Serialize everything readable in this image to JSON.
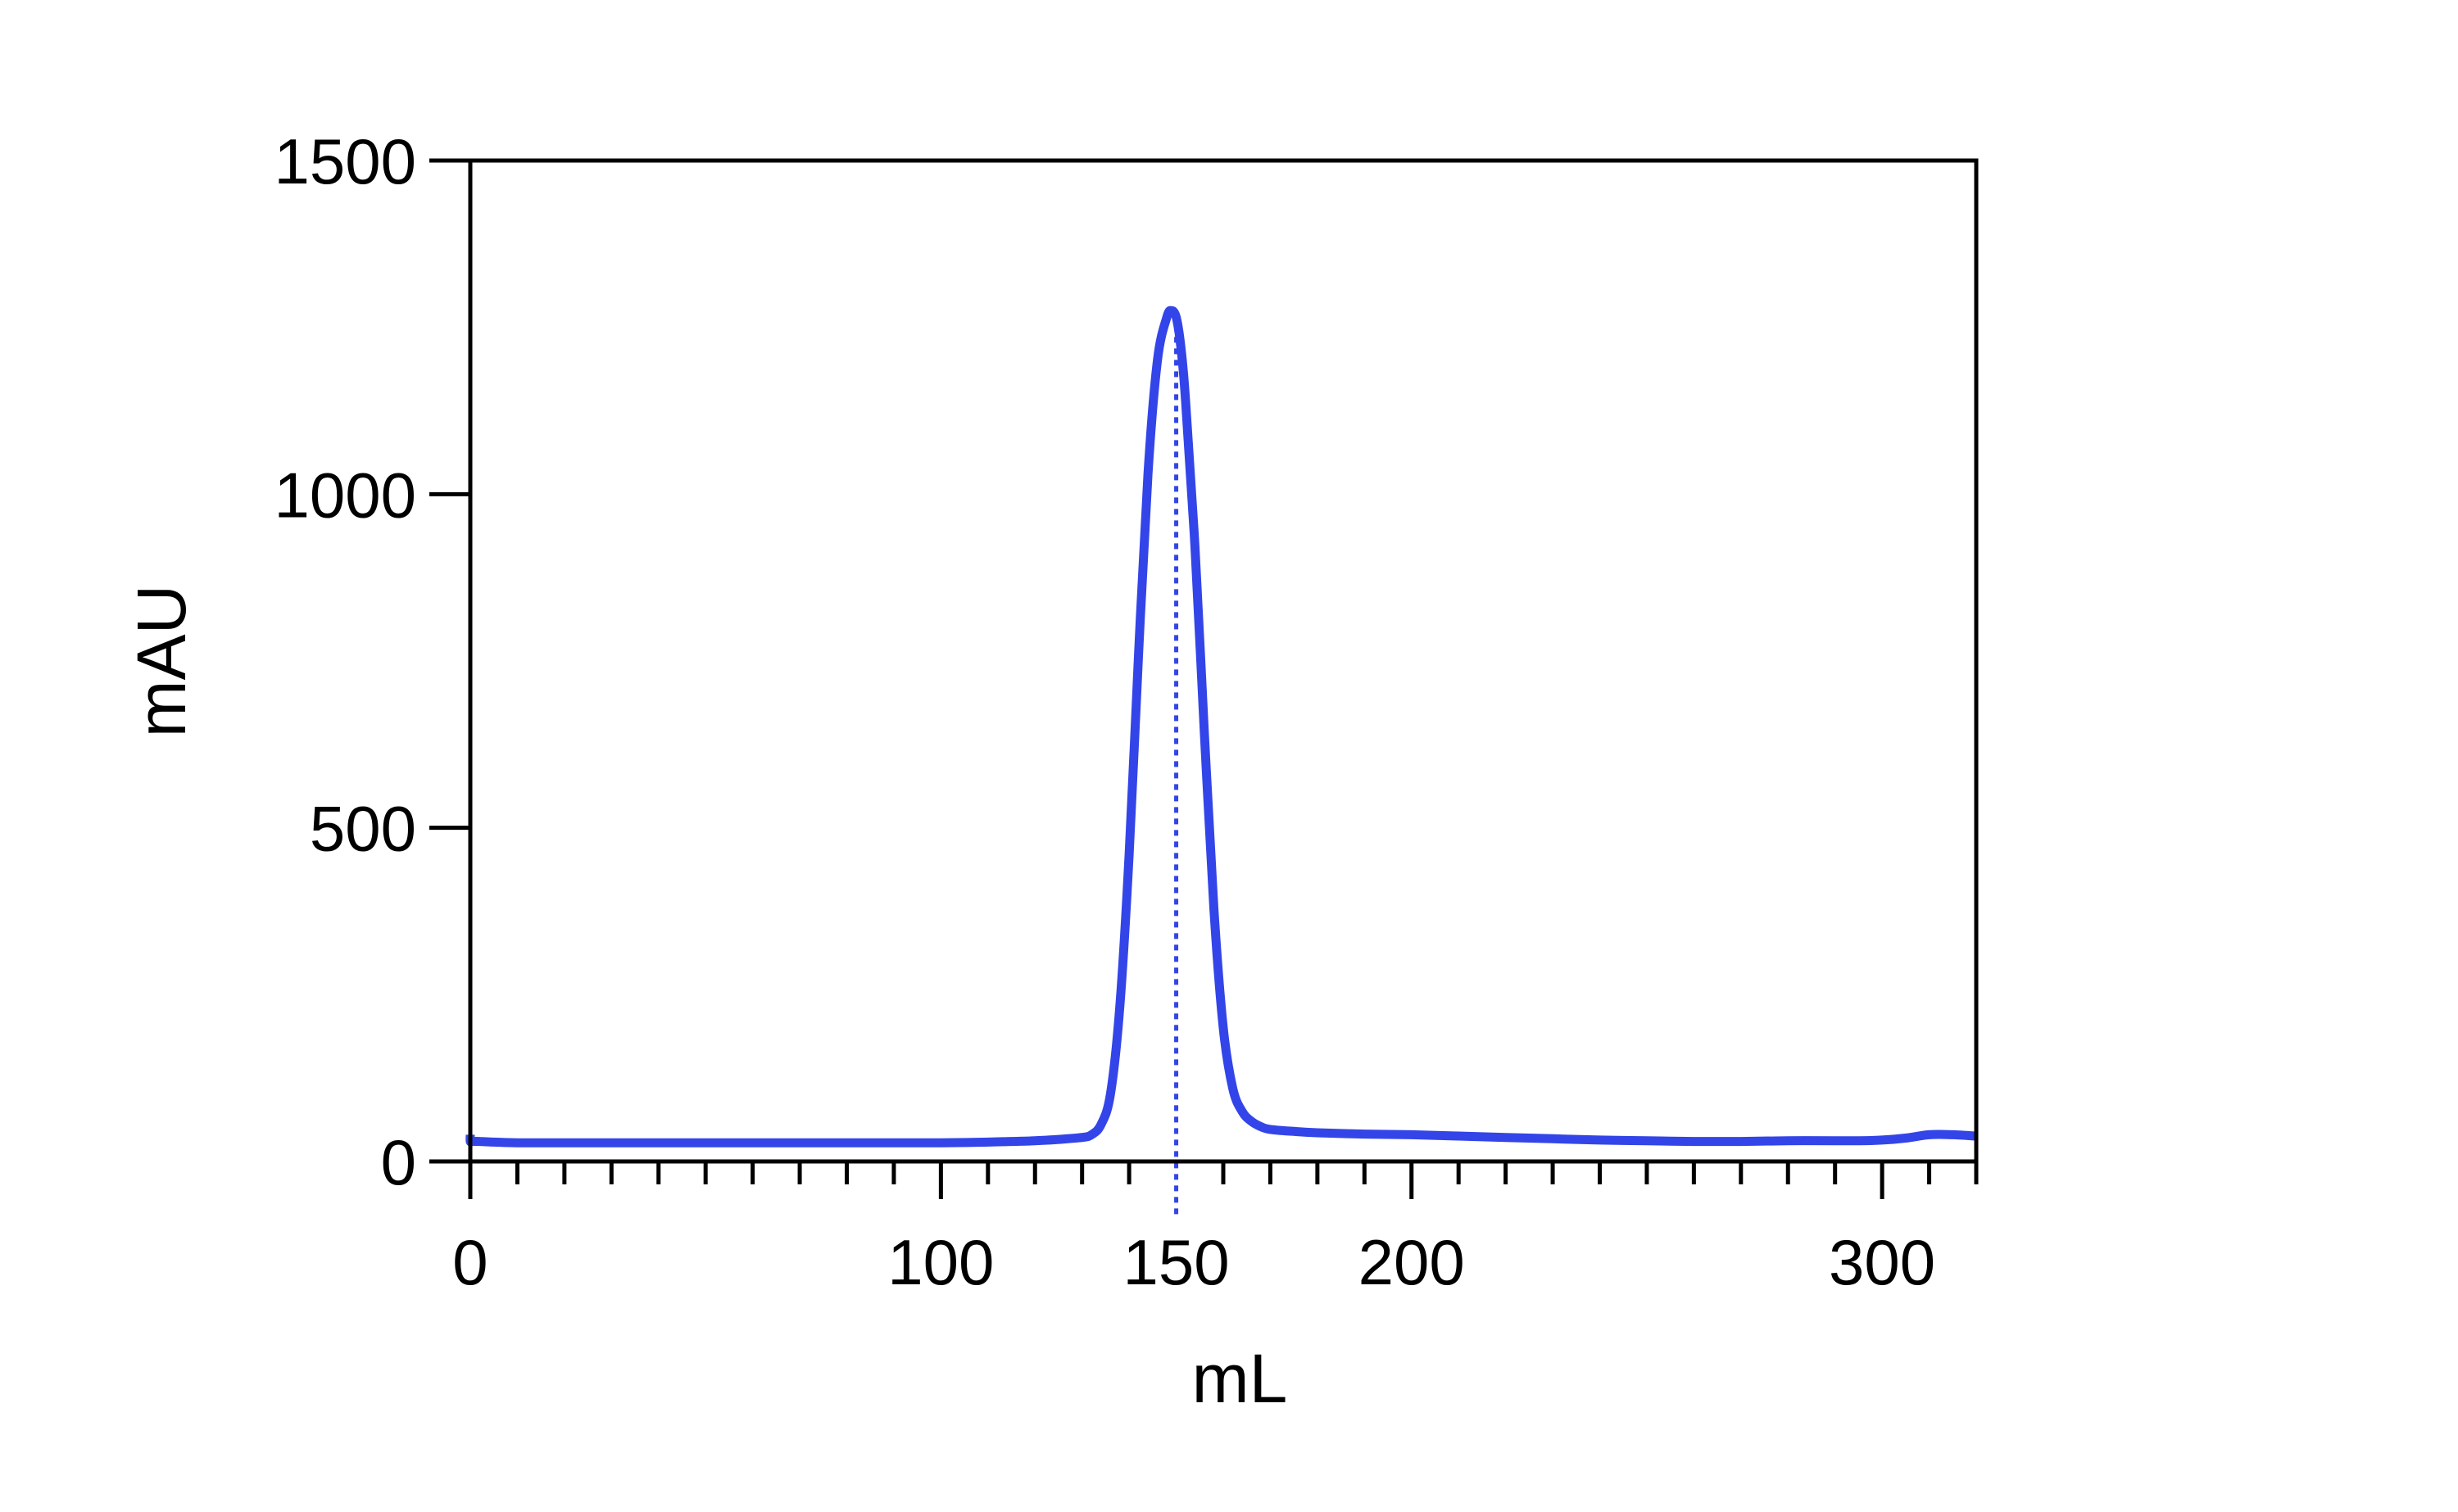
{
  "chart_data": {
    "type": "line",
    "title": "",
    "xlabel": "mL",
    "ylabel": "mAU",
    "xlim": [
      0,
      320
    ],
    "ylim": [
      0,
      1500
    ],
    "x_ticks": [
      0,
      100,
      150,
      200,
      300
    ],
    "x_minor_tick_step": 10,
    "y_ticks": [
      0,
      500,
      1000,
      1500
    ],
    "grid": false,
    "legend": "none",
    "annotations": [
      {
        "type": "vertical-dotted-line",
        "x": 150,
        "label": "150",
        "color": "#3345e8"
      }
    ],
    "series": [
      {
        "color": "#3345e8",
        "x": [
          0,
          0,
          0.5,
          2,
          5,
          10,
          20,
          40,
          60,
          80,
          100,
          110,
          115,
          120,
          125,
          130,
          132,
          134,
          136,
          138,
          140,
          142,
          144,
          146,
          148,
          149,
          150,
          151,
          152,
          154,
          156,
          158,
          160,
          162,
          164,
          166,
          168,
          170,
          175,
          180,
          190,
          200,
          210,
          220,
          230,
          240,
          250,
          260,
          270,
          280,
          290,
          295,
          300,
          305,
          310,
          315,
          320
        ],
        "y": [
          40,
          30,
          30,
          30,
          29,
          28,
          28,
          28,
          28,
          28,
          28,
          29,
          30,
          31,
          33,
          36,
          40,
          55,
          100,
          230,
          460,
          760,
          1030,
          1200,
          1265,
          1275,
          1265,
          1220,
          1140,
          920,
          640,
          380,
          200,
          110,
          75,
          60,
          52,
          48,
          45,
          43,
          41,
          40,
          38,
          36,
          34,
          32,
          31,
          30,
          30,
          31,
          31,
          31,
          32,
          35,
          40,
          40,
          38
        ]
      }
    ]
  }
}
